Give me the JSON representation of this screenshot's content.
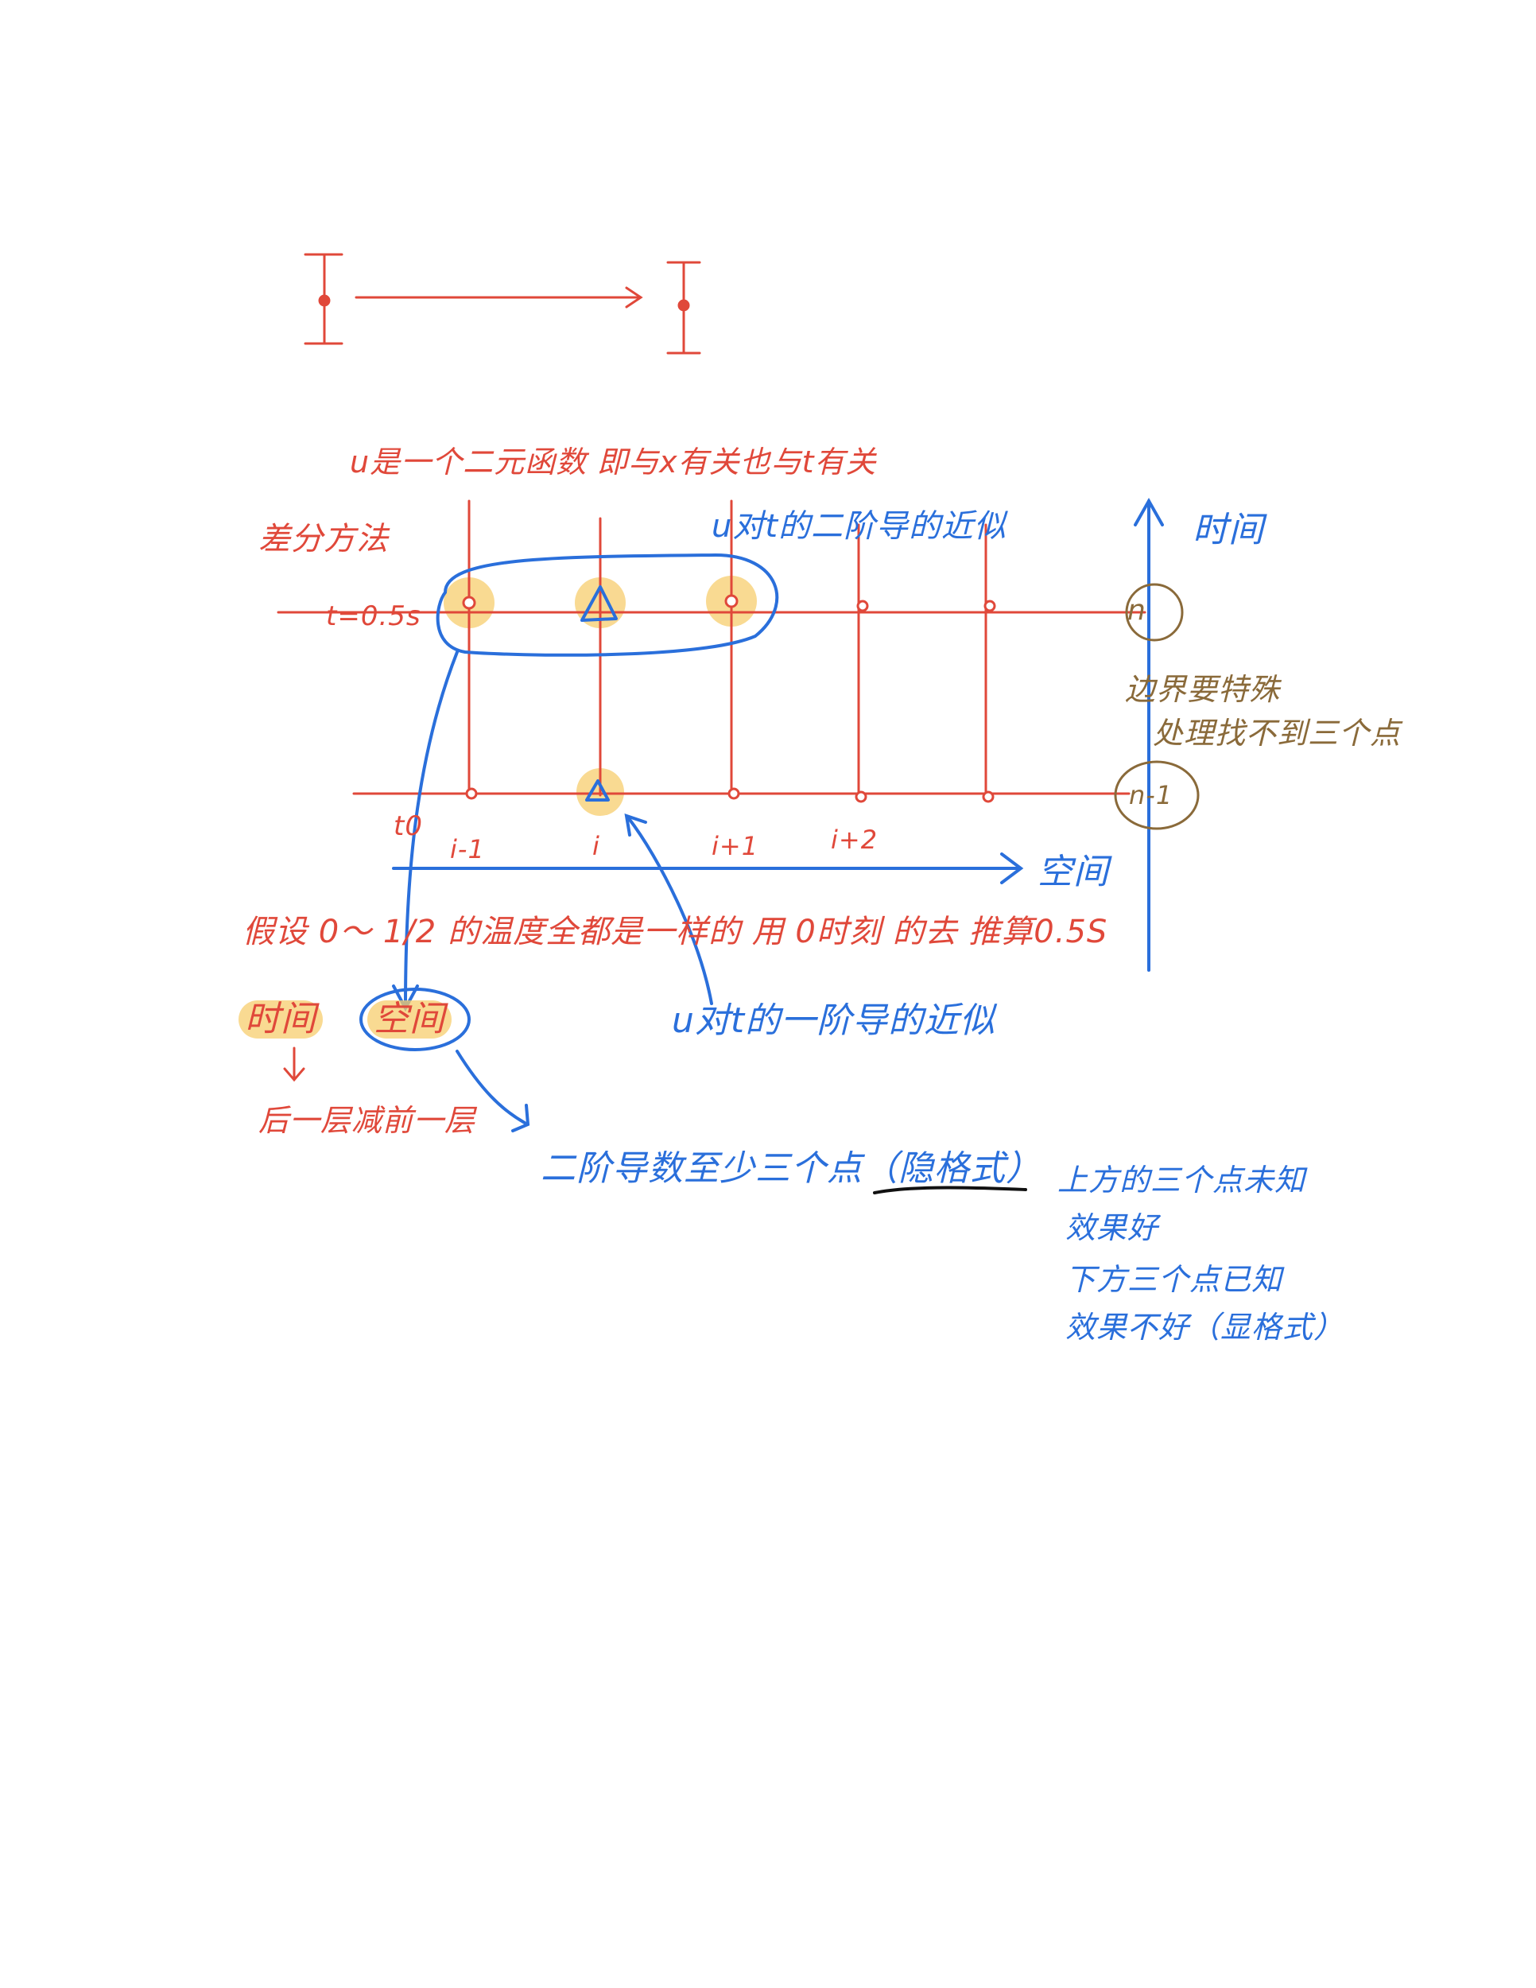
{
  "title_note": "u是一个二元函数 即与x有关也与t有关",
  "method_label": "差分方法",
  "top_right_note": "u对t的二阶导的近似",
  "time_axis_label": "时间",
  "row_n_label": "t=0.5s",
  "boundary_note": [
    "边界要特殊",
    "处理找不到三个点"
  ],
  "circle_n": "n",
  "circle_n_minus_1": "n-1",
  "bottom_labels": {
    "t0": "t0",
    "i_minus_1": "i-1",
    "i": "i",
    "i_plus_1": "i+1",
    "i_plus_2": "i+2"
  },
  "space_axis_label": "空间",
  "assumption_note": "假设 0～ 1/2 的温度全都是一样的 用 0时刻 的去 推算0.5S",
  "bottom_time_label": "时间",
  "bottom_space_label": "空间",
  "subtraction_note": "后一层减前一层",
  "first_order_note": "u对t的一阶导的近似",
  "second_order_note": "二阶导数至少三个点（隐格式）",
  "right_notes": [
    "上方的三个点未知",
    "效果好",
    "下方三个点已知",
    "效果不好（显格式）"
  ],
  "colors": {
    "red": "#e0483a",
    "blue": "#2a6fdb",
    "highlight": "#f7cd6e",
    "brown": "#8a6a3a"
  }
}
